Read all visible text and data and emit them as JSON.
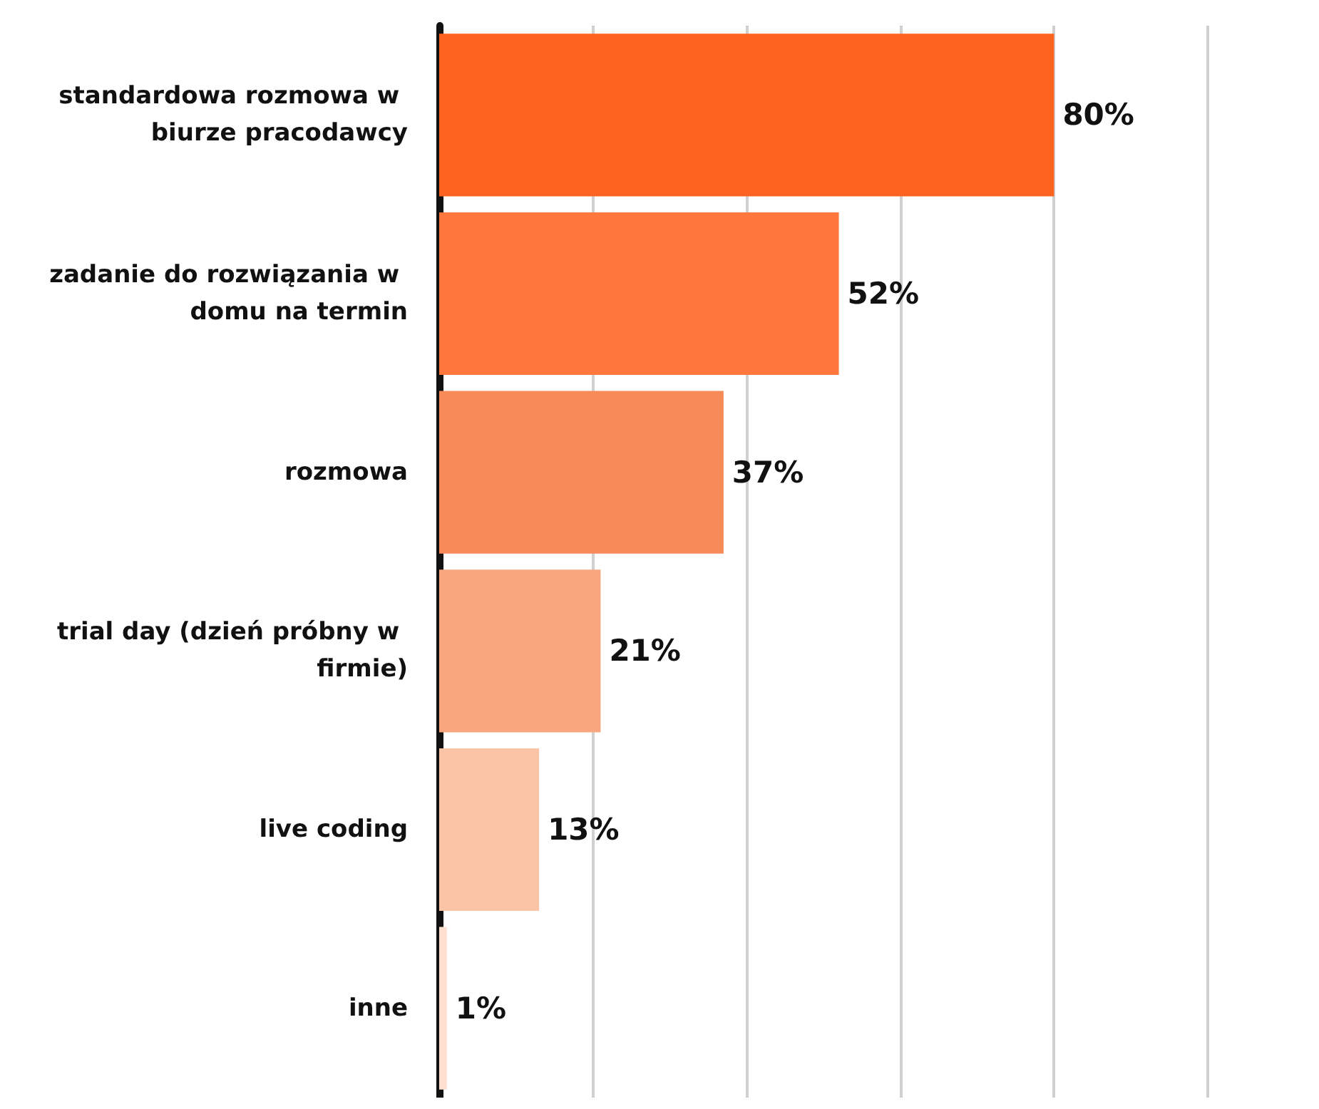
{
  "chart_data": {
    "type": "bar",
    "orientation": "horizontal",
    "categories": [
      "standardowa rozmowa w biurze pracodawcy",
      "zadanie do rozwiązania w domu na termin",
      "rozmowa",
      "trial day (dzień próbny w firmie)",
      "live coding",
      "inne"
    ],
    "values": [
      80,
      52,
      37,
      21,
      13,
      1
    ],
    "colors": [
      "#ff6320",
      "#ff773a",
      "#f68a58",
      "#f9a57d",
      "#fcc4a7",
      "#fde0d0"
    ],
    "value_labels": [
      "80%",
      "52%",
      "37%",
      "21%",
      "13%",
      "1%"
    ],
    "xlim": [
      0,
      100
    ],
    "xticks": [
      {
        "value": 0,
        "label": null
      },
      {
        "value": 20,
        "label": null
      },
      {
        "value": 40,
        "label": null
      },
      {
        "value": 60,
        "label": null
      },
      {
        "value": 80,
        "label": null
      },
      {
        "value": 100,
        "label": null
      }
    ],
    "tick_labels": "y",
    "grid": "x"
  }
}
